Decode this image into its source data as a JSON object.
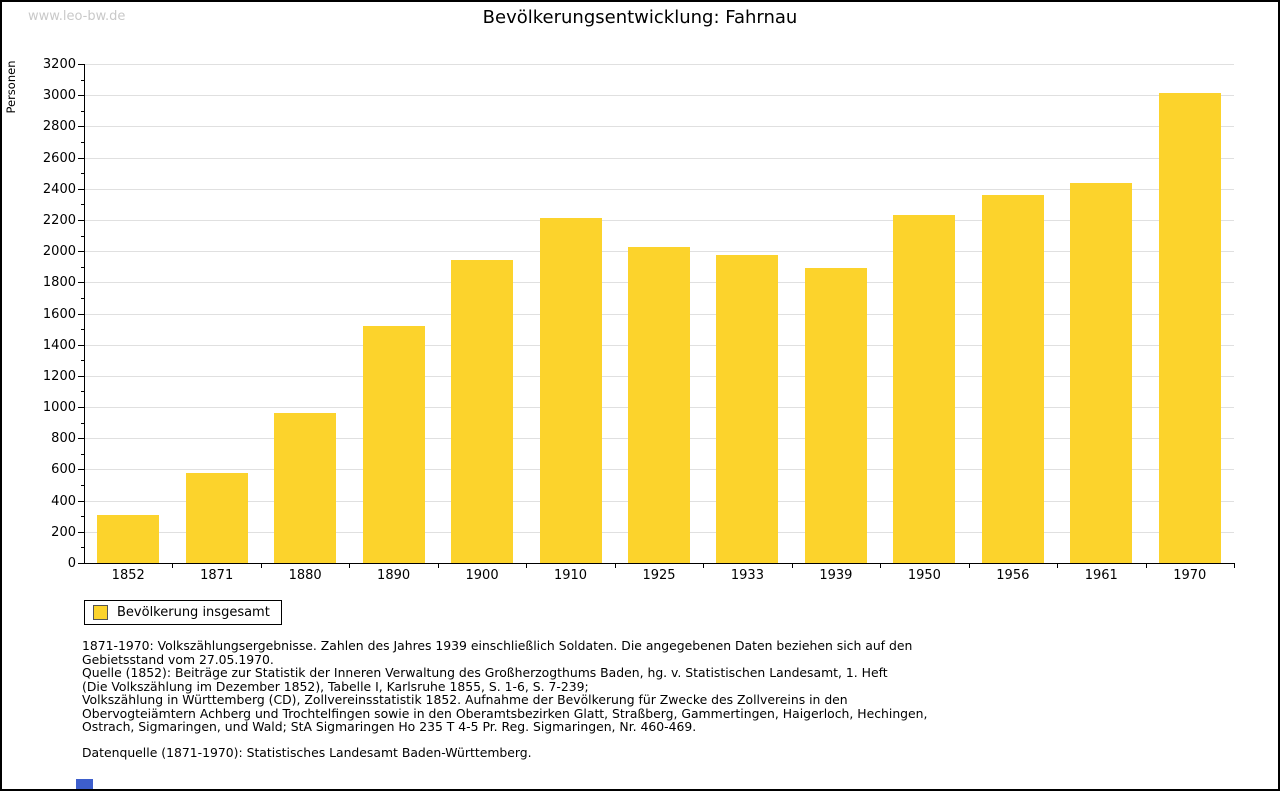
{
  "page": {
    "watermark": "www.leo-bw.de",
    "title": "Bevölkerungsentwicklung: Fahrnau"
  },
  "chart_data": {
    "type": "bar",
    "title": "Bevölkerungsentwicklung: Fahrnau",
    "xlabel": "",
    "ylabel": "Personen",
    "categories": [
      "1852",
      "1871",
      "1880",
      "1890",
      "1900",
      "1910",
      "1925",
      "1933",
      "1939",
      "1950",
      "1956",
      "1961",
      "1970"
    ],
    "values": [
      310,
      575,
      960,
      1520,
      1940,
      2210,
      2025,
      1975,
      1890,
      2230,
      2360,
      2435,
      3015
    ],
    "ylim": [
      0,
      3200
    ],
    "yticks": [
      0,
      200,
      400,
      600,
      800,
      1000,
      1200,
      1400,
      1600,
      1800,
      2000,
      2200,
      2400,
      2600,
      2800,
      3000,
      3200
    ],
    "ytick_minor_step": 100,
    "grid": true,
    "legend": {
      "position": "bottom-left",
      "label": "Bevölkerung insgesamt"
    },
    "bar_color": "#FCD32C"
  },
  "footnotes": {
    "lines": [
      "1871-1970: Volkszählungsergebnisse. Zahlen des Jahres 1939 einschließlich Soldaten. Die angegebenen Daten beziehen sich auf den",
      "Gebietsstand vom 27.05.1970.",
      "Quelle (1852): Beiträge zur Statistik der Inneren Verwaltung des Großherzogthums Baden, hg. v. Statistischen Landesamt, 1. Heft",
      "(Die Volkszählung im Dezember 1852), Tabelle I, Karlsruhe 1855, S. 1-6, S. 7-239;",
      "Volkszählung in Württemberg (CD), Zollvereinsstatistik 1852. Aufnahme der Bevölkerung für Zwecke des Zollvereins in den",
      "Obervogteiämtern Achberg und Trochtelfingen sowie in den Oberamtsbezirken Glatt, Straßberg, Gammertingen, Haigerloch, Hechingen,",
      "Ostrach, Sigmaringen, und Wald; StA Sigmaringen Ho 235 T 4-5 Pr. Reg. Sigmaringen, Nr. 460-469."
    ],
    "datasource": "Datenquelle (1871-1970): Statistisches Landesamt Baden-Württemberg."
  },
  "colors": {
    "bar": "#FCD32C",
    "grid": "#E0E0E0",
    "axis": "#000000",
    "watermark": "#C9C9C9",
    "frame_border": "#000000",
    "blue_artifact": "#3D5ECC"
  }
}
